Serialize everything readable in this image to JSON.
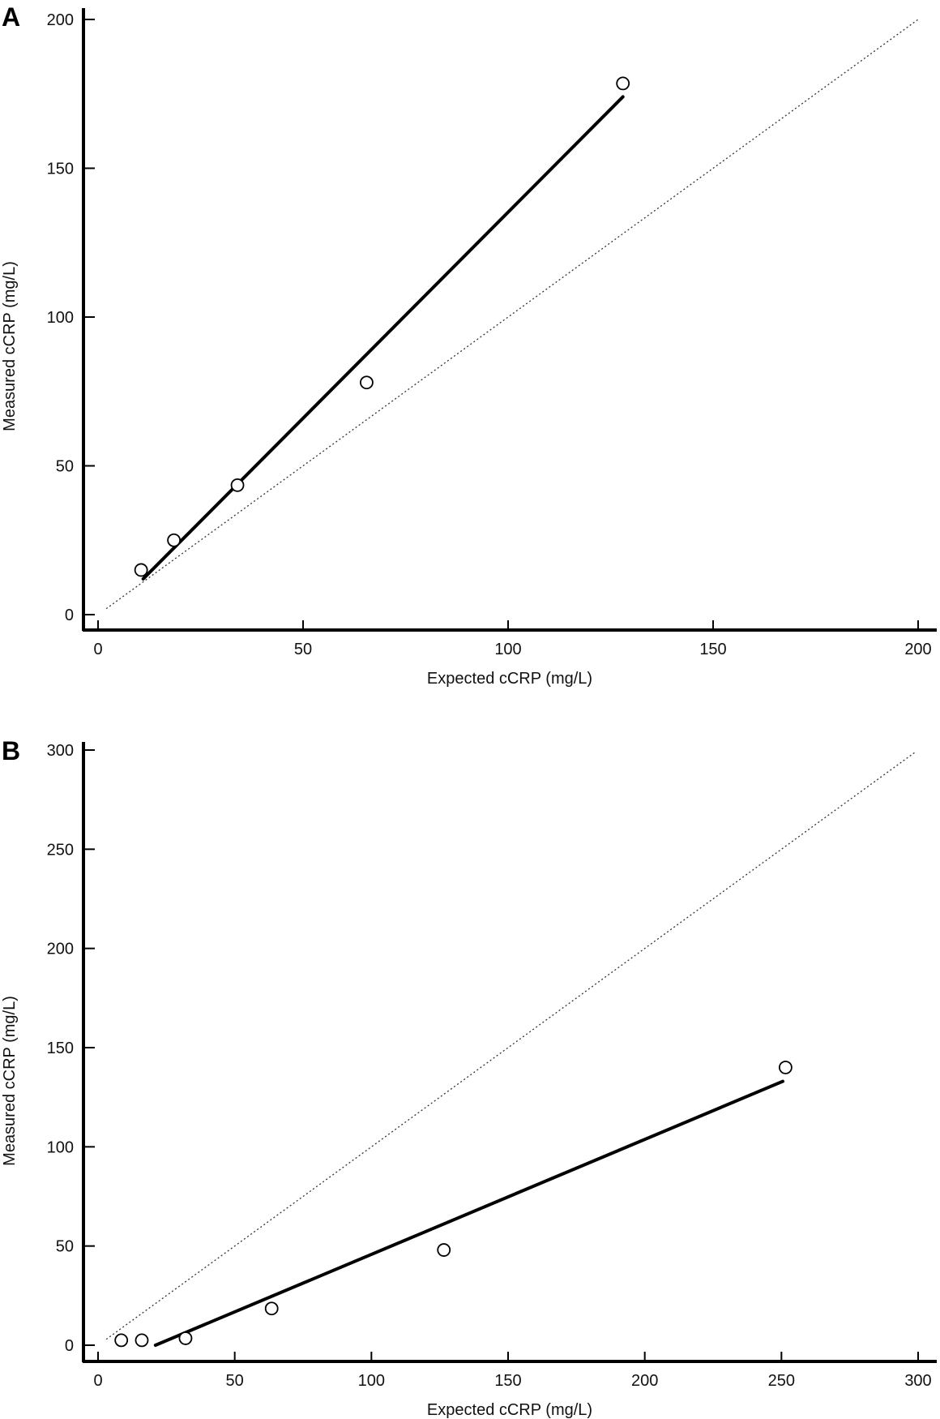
{
  "chart_data": [
    {
      "panel": "A",
      "type": "scatter",
      "xlabel": "Expected cCRP (mg/L)",
      "ylabel": "Measured cCRP (mg/L)",
      "xlim": [
        0,
        200
      ],
      "ylim": [
        0,
        200
      ],
      "xticks": [
        0,
        50,
        100,
        150,
        200
      ],
      "yticks": [
        0,
        50,
        100,
        150,
        200
      ],
      "points": [
        {
          "x": 10.5,
          "y": 15
        },
        {
          "x": 18.5,
          "y": 25
        },
        {
          "x": 34,
          "y": 43.5
        },
        {
          "x": 65.5,
          "y": 78
        },
        {
          "x": 128,
          "y": 178.5
        }
      ],
      "regression_line": {
        "x": [
          11,
          128
        ],
        "y": [
          12,
          174
        ]
      },
      "identity_line": {
        "x": [
          2,
          200
        ],
        "y": [
          2,
          200
        ]
      },
      "grid": false
    },
    {
      "panel": "B",
      "type": "scatter",
      "xlabel": "Expected cCRP (mg/L)",
      "ylabel": "Measured cCRP (mg/L)",
      "xlim": [
        0,
        300
      ],
      "ylim": [
        0,
        300
      ],
      "xticks": [
        0,
        50,
        100,
        150,
        200,
        250,
        300
      ],
      "yticks": [
        0,
        50,
        100,
        150,
        200,
        250,
        300
      ],
      "points": [
        {
          "x": 8.5,
          "y": 2.5
        },
        {
          "x": 16,
          "y": 2.5
        },
        {
          "x": 32,
          "y": 3.5
        },
        {
          "x": 63.5,
          "y": 18.5
        },
        {
          "x": 126.5,
          "y": 48
        },
        {
          "x": 251.5,
          "y": 140
        }
      ],
      "regression_line": {
        "x": [
          21,
          250.5
        ],
        "y": [
          0,
          133
        ]
      },
      "identity_line": {
        "x": [
          3,
          299
        ],
        "y": [
          3,
          299
        ]
      },
      "grid": false
    }
  ]
}
